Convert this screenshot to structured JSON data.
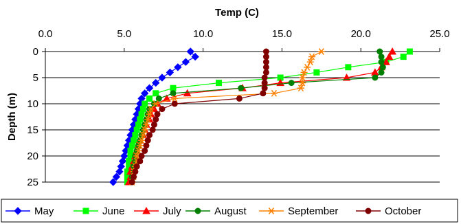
{
  "chart_data": {
    "type": "line",
    "title": "",
    "xlabel": "Temp (C)",
    "ylabel": "Depth (m)",
    "xlim": [
      0,
      25
    ],
    "ylim": [
      0,
      25
    ],
    "x_ticks": [
      "0.0",
      "5.0",
      "10.0",
      "15.0",
      "20.0",
      "25.0"
    ],
    "y_ticks": [
      "0",
      "5",
      "10",
      "15",
      "20",
      "25"
    ],
    "x_axis_position": "top",
    "y_axis_inverted": true,
    "grid": "horizontal",
    "legend": "bottom",
    "series": [
      {
        "name": "May",
        "color": "#0000ff",
        "marker": "diamond",
        "points": [
          [
            9.2,
            0
          ],
          [
            9.5,
            1
          ],
          [
            8.9,
            2
          ],
          [
            8.4,
            3
          ],
          [
            7.9,
            4
          ],
          [
            7.4,
            5
          ],
          [
            7.0,
            6
          ],
          [
            6.6,
            7
          ],
          [
            6.3,
            8
          ],
          [
            6.1,
            9
          ],
          [
            6.0,
            10
          ],
          [
            5.9,
            11
          ],
          [
            5.8,
            12
          ],
          [
            5.7,
            13
          ],
          [
            5.6,
            14
          ],
          [
            5.5,
            15
          ],
          [
            5.4,
            16
          ],
          [
            5.3,
            17
          ],
          [
            5.2,
            18
          ],
          [
            5.1,
            19
          ],
          [
            5.0,
            20
          ],
          [
            4.9,
            21
          ],
          [
            4.8,
            22
          ],
          [
            4.7,
            23
          ],
          [
            4.5,
            24
          ],
          [
            4.3,
            25
          ]
        ]
      },
      {
        "name": "June",
        "color": "#00ff00",
        "marker": "square",
        "points": [
          [
            23.1,
            0
          ],
          [
            22.7,
            1
          ],
          [
            21.6,
            2
          ],
          [
            19.2,
            3
          ],
          [
            17.2,
            4
          ],
          [
            14.9,
            5
          ],
          [
            11.0,
            6
          ],
          [
            8.1,
            7
          ],
          [
            7.0,
            8
          ],
          [
            6.6,
            9
          ],
          [
            6.3,
            10
          ],
          [
            6.2,
            11
          ],
          [
            6.1,
            12
          ],
          [
            6.0,
            13
          ],
          [
            5.9,
            14
          ],
          [
            5.8,
            15
          ],
          [
            5.7,
            16
          ],
          [
            5.6,
            17
          ],
          [
            5.5,
            18
          ],
          [
            5.4,
            19
          ],
          [
            5.4,
            20
          ],
          [
            5.3,
            21
          ],
          [
            5.3,
            22
          ],
          [
            5.2,
            23
          ],
          [
            5.2,
            24
          ],
          [
            5.2,
            25
          ]
        ]
      },
      {
        "name": "July",
        "color": "#ff0000",
        "marker": "triangle",
        "points": [
          [
            22.0,
            0
          ],
          [
            21.8,
            1
          ],
          [
            21.6,
            2
          ],
          [
            21.3,
            3
          ],
          [
            20.9,
            4
          ],
          [
            19.1,
            5
          ],
          [
            14.9,
            6
          ],
          [
            12.5,
            7
          ],
          [
            9.0,
            8
          ],
          [
            7.7,
            9
          ],
          [
            7.1,
            10
          ],
          [
            6.9,
            11
          ],
          [
            6.7,
            12
          ],
          [
            6.6,
            13
          ],
          [
            6.4,
            14
          ],
          [
            6.3,
            15
          ],
          [
            6.2,
            16
          ],
          [
            6.0,
            17
          ],
          [
            5.9,
            18
          ],
          [
            5.8,
            19
          ],
          [
            5.7,
            20
          ],
          [
            5.6,
            21
          ],
          [
            5.5,
            22
          ],
          [
            5.4,
            23
          ],
          [
            5.4,
            24
          ],
          [
            5.3,
            25
          ]
        ]
      },
      {
        "name": "August",
        "color": "#008000",
        "marker": "circle",
        "points": [
          [
            21.2,
            0
          ],
          [
            21.3,
            1
          ],
          [
            21.3,
            2
          ],
          [
            21.4,
            3
          ],
          [
            21.3,
            4
          ],
          [
            20.9,
            5
          ],
          [
            15.6,
            6
          ],
          [
            12.4,
            7
          ],
          [
            8.1,
            8
          ],
          [
            7.2,
            9
          ],
          [
            6.9,
            10
          ],
          [
            6.6,
            11
          ],
          [
            6.5,
            12
          ],
          [
            6.4,
            13
          ],
          [
            6.3,
            14
          ],
          [
            6.2,
            15
          ],
          [
            6.1,
            16
          ],
          [
            6.0,
            17
          ],
          [
            5.9,
            18
          ],
          [
            5.8,
            19
          ],
          [
            5.7,
            20
          ],
          [
            5.7,
            21
          ],
          [
            5.6,
            22
          ],
          [
            5.6,
            23
          ],
          [
            5.5,
            24
          ],
          [
            5.5,
            25
          ]
        ]
      },
      {
        "name": "September",
        "color": "#ff8000",
        "marker": "asterisk",
        "points": [
          [
            17.5,
            0
          ],
          [
            16.9,
            1
          ],
          [
            16.8,
            2
          ],
          [
            16.6,
            3
          ],
          [
            16.4,
            4
          ],
          [
            16.3,
            5
          ],
          [
            16.3,
            6
          ],
          [
            16.2,
            7
          ],
          [
            14.5,
            8
          ],
          [
            8.2,
            9
          ],
          [
            7.0,
            10
          ],
          [
            6.7,
            11
          ],
          [
            6.6,
            12
          ],
          [
            6.5,
            13
          ],
          [
            6.4,
            14
          ],
          [
            6.3,
            15
          ],
          [
            6.2,
            16
          ],
          [
            6.1,
            17
          ],
          [
            6.0,
            18
          ],
          [
            5.9,
            19
          ],
          [
            5.8,
            20
          ],
          [
            5.8,
            21
          ],
          [
            5.7,
            22
          ],
          [
            5.6,
            23
          ],
          [
            5.6,
            24
          ],
          [
            5.5,
            25
          ]
        ]
      },
      {
        "name": "October",
        "color": "#800000",
        "marker": "circle",
        "points": [
          [
            14.0,
            0
          ],
          [
            14.0,
            1
          ],
          [
            14.0,
            2
          ],
          [
            14.0,
            3
          ],
          [
            14.0,
            4
          ],
          [
            13.9,
            5
          ],
          [
            13.9,
            6
          ],
          [
            13.9,
            7
          ],
          [
            13.8,
            8
          ],
          [
            12.3,
            9
          ],
          [
            8.2,
            10
          ],
          [
            7.4,
            11
          ],
          [
            7.1,
            12
          ],
          [
            7.0,
            13
          ],
          [
            6.9,
            14
          ],
          [
            6.8,
            15
          ],
          [
            6.6,
            16
          ],
          [
            6.5,
            17
          ],
          [
            6.4,
            18
          ],
          [
            6.3,
            19
          ],
          [
            6.1,
            20
          ],
          [
            6.0,
            21
          ],
          [
            5.8,
            22
          ],
          [
            5.7,
            23
          ],
          [
            5.6,
            24
          ],
          [
            5.5,
            25
          ]
        ]
      }
    ]
  }
}
